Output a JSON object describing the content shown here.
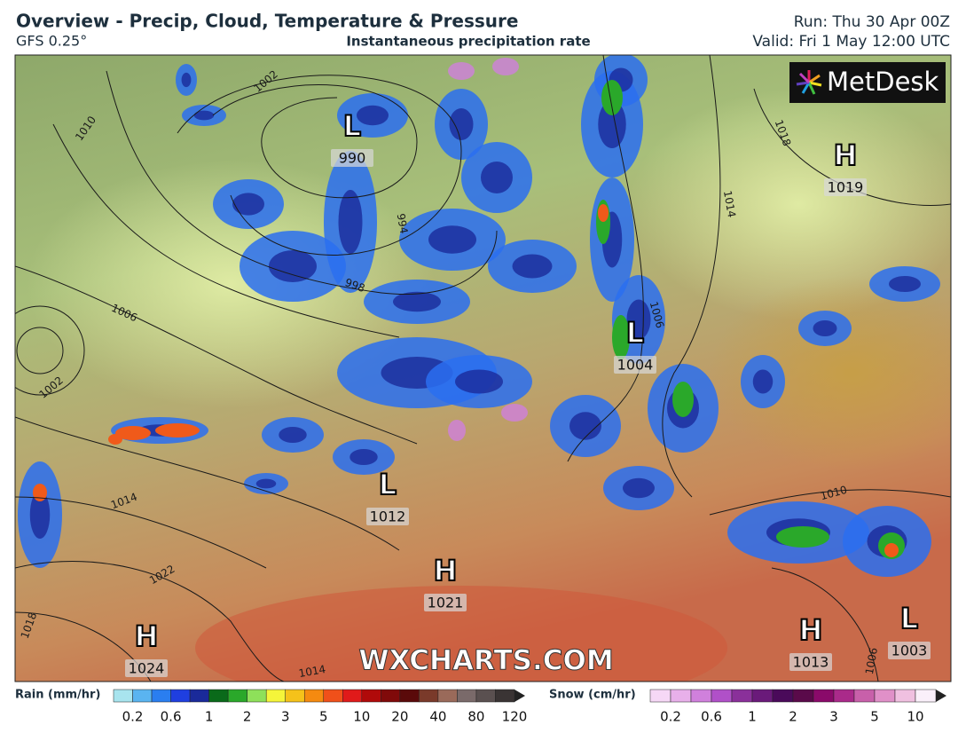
{
  "header": {
    "title": "Overview - Precip, Cloud, Temperature & Pressure",
    "model": "GFS 0.25°",
    "layer": "Instantaneous precipitation rate",
    "run": "Run: Thu 30 Apr 00Z",
    "valid": "Valid: Fri 1 May 12:00 UTC"
  },
  "logo": "MetDesk",
  "watermark": "WXCHARTS.COM",
  "pressure_centers": [
    {
      "symbol": "L",
      "value": 990
    },
    {
      "symbol": "H",
      "value": 1019
    },
    {
      "symbol": "L",
      "value": 1004
    },
    {
      "symbol": "L",
      "value": 1012
    },
    {
      "symbol": "H",
      "value": 1021
    },
    {
      "symbol": "H",
      "value": 1024
    },
    {
      "symbol": "H",
      "value": 1013
    },
    {
      "symbol": "L",
      "value": 1003
    }
  ],
  "isobar_labels": [
    "1010",
    "1006",
    "1002",
    "1014",
    "1022",
    "1018",
    "1014",
    "994",
    "998",
    "1006",
    "1010",
    "1018",
    "1014",
    "1002",
    "1006"
  ],
  "rain_legend": {
    "title": "Rain (mm/hr)",
    "labels": [
      0.2,
      0.6,
      1,
      2,
      3,
      5,
      10,
      20,
      40,
      80,
      120
    ],
    "colors": [
      "#a8e4ee",
      "#5ab4f0",
      "#2a7ef0",
      "#1f3fe0",
      "#1a2a9a",
      "#0a6a1a",
      "#2aa82a",
      "#8ee05a",
      "#f5f53a",
      "#f5c21a",
      "#f58a10",
      "#f0501a",
      "#e01a1a",
      "#b00a0a",
      "#800a0a",
      "#5a0a0a",
      "#7a3a2a",
      "#9a6a5a",
      "#7a6a6a",
      "#5a5050",
      "#3a3434"
    ]
  },
  "snow_legend": {
    "title": "Snow (cm/hr)",
    "labels": [
      0.2,
      0.6,
      1,
      2,
      3,
      5,
      10
    ],
    "colors": [
      "#f6d8f6",
      "#e8b0ea",
      "#d080dc",
      "#b050c8",
      "#8a309a",
      "#6a1a7a",
      "#4a0a5a",
      "#5a0a4a",
      "#8a0a6a",
      "#aa2a8a",
      "#c860aa",
      "#e090c8",
      "#f0c0e0",
      "#faf0fa"
    ]
  }
}
